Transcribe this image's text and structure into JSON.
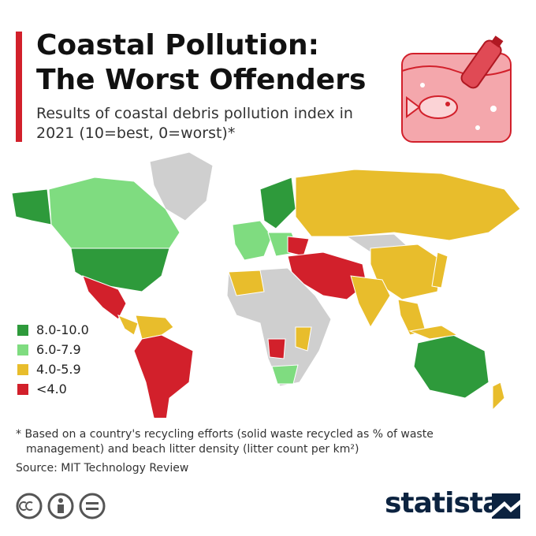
{
  "header": {
    "title": [
      "Coastal Pollution:",
      "The Worst Offenders"
    ],
    "subtitle": "Results of coastal debris pollution index in 2021 (10=best, 0=worst)*"
  },
  "legend": [
    {
      "label": "8.0-10.0",
      "color": "#2e9a3b"
    },
    {
      "label": "6.0-7.9",
      "color": "#7fdc80"
    },
    {
      "label": "4.0-5.9",
      "color": "#e8bd2c"
    },
    {
      "label": "<4.0",
      "color": "#d2202b"
    }
  ],
  "footnote": "* Based on a country's recycling efforts (solid waste recycled as % of waste management) and beach litter density (litter count per km²)",
  "source": "Source: MIT Technology Review",
  "brand": "statista"
}
